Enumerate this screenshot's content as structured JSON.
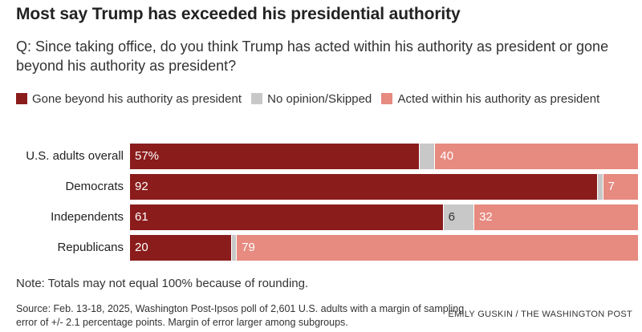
{
  "title": "Most say Trump has exceeded his presidential authority",
  "question": "Q: Since taking office, do you think Trump has acted within his authority as president or gone beyond his authority as president?",
  "legend": [
    {
      "label": "Gone beyond his authority as president",
      "color": "#8b1c1c"
    },
    {
      "label": "No opinion/Skipped",
      "color": "#c8c8c8"
    },
    {
      "label": "Acted within his authority as president",
      "color": "#e78a80"
    }
  ],
  "note": "Note: Totals may not equal 100% because of rounding.",
  "source": "Source: Feb. 13-18, 2025, Washington Post-Ipsos poll of 2,601 U.S. adults with a margin of sampling error of +/- 2.1 percentage points. Margin of error larger among subgroups.",
  "credit": "EMILY GUSKIN / THE WASHINGTON POST",
  "chart_data": {
    "type": "bar",
    "stacked": true,
    "orientation": "horizontal",
    "categories": [
      "U.S. adults overall",
      "Democrats",
      "Independents",
      "Republicans"
    ],
    "series": [
      {
        "name": "Gone beyond his authority as president",
        "color": "#8b1c1c",
        "values": [
          57,
          92,
          61,
          20
        ],
        "labels": [
          "57%",
          "92",
          "61",
          "20"
        ]
      },
      {
        "name": "No opinion/Skipped",
        "color": "#c8c8c8",
        "values": [
          3,
          1,
          6,
          1
        ],
        "labels": [
          "",
          "",
          "6",
          ""
        ]
      },
      {
        "name": "Acted within his authority as president",
        "color": "#e78a80",
        "values": [
          40,
          7,
          32,
          79
        ],
        "labels": [
          "40",
          "7",
          "32",
          "79"
        ]
      }
    ],
    "xlim": [
      0,
      100
    ]
  }
}
